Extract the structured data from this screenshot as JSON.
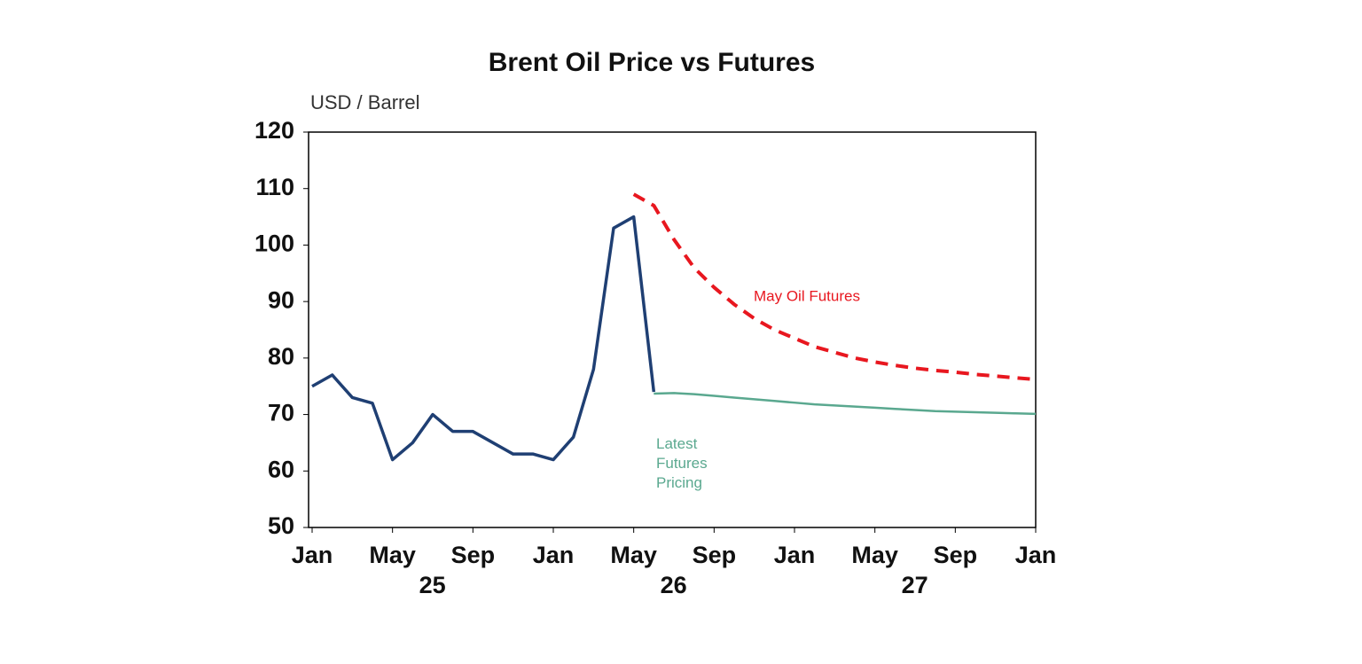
{
  "chart_data": {
    "type": "line",
    "title": "Brent Oil Price vs Futures",
    "y_label": "USD / Barrel",
    "x": [
      "2025-01",
      "2025-02",
      "2025-03",
      "2025-04",
      "2025-05",
      "2025-06",
      "2025-07",
      "2025-08",
      "2025-09",
      "2025-10",
      "2025-11",
      "2025-12",
      "2026-01",
      "2026-02",
      "2026-03",
      "2026-04",
      "2026-05",
      "2026-06",
      "2026-07",
      "2026-08",
      "2026-09",
      "2026-10",
      "2026-11",
      "2026-12",
      "2027-01",
      "2027-02",
      "2027-03",
      "2027-04",
      "2027-05",
      "2027-06",
      "2027-07",
      "2027-08",
      "2027-09",
      "2027-10",
      "2027-11",
      "2027-12",
      "2028-01"
    ],
    "series": [
      {
        "color": "#1f3f73",
        "style": "solid",
        "values": [
          75,
          77,
          73,
          72,
          62,
          65,
          70,
          67,
          67,
          65,
          63,
          63,
          62,
          66,
          78,
          103,
          105,
          74,
          null,
          null,
          null,
          null,
          null,
          null,
          null,
          null,
          null,
          null,
          null,
          null,
          null,
          null,
          null,
          null,
          null,
          null,
          null
        ]
      },
      {
        "name": "May Oil Futures",
        "color": "#e8171f",
        "style": "dashed",
        "values": [
          null,
          null,
          null,
          null,
          null,
          null,
          null,
          null,
          null,
          null,
          null,
          null,
          null,
          null,
          null,
          null,
          109,
          107,
          101,
          96,
          92.5,
          89.5,
          87,
          85,
          83.5,
          82,
          81,
          80,
          79.3,
          78.7,
          78.2,
          77.8,
          77.5,
          77.1,
          76.8,
          76.5,
          76.2
        ]
      },
      {
        "name": "Latest Futures Pricing",
        "color": "#5aa88f",
        "style": "solid",
        "values": [
          null,
          null,
          null,
          null,
          null,
          null,
          null,
          null,
          null,
          null,
          null,
          null,
          null,
          null,
          null,
          null,
          null,
          73.7,
          73.8,
          73.6,
          73.3,
          73.0,
          72.7,
          72.4,
          72.1,
          71.8,
          71.6,
          71.4,
          71.2,
          71.0,
          70.8,
          70.6,
          70.5,
          70.4,
          70.3,
          70.2,
          70.1
        ]
      }
    ],
    "xlim": [
      "2025-01",
      "2028-01"
    ],
    "xticks": [
      {
        "value": "2025-01",
        "label": "Jan"
      },
      {
        "value": "2025-05",
        "label": "May"
      },
      {
        "value": "2025-09",
        "label": "Sep"
      },
      {
        "value": "2026-01",
        "label": "Jan"
      },
      {
        "value": "2026-05",
        "label": "May"
      },
      {
        "value": "2026-09",
        "label": "Sep"
      },
      {
        "value": "2027-01",
        "label": "Jan"
      },
      {
        "value": "2027-05",
        "label": "May"
      },
      {
        "value": "2027-09",
        "label": "Sep"
      },
      {
        "value": "2028-01",
        "label": "Jan"
      }
    ],
    "year_labels": [
      {
        "value": "2025",
        "label": "25"
      },
      {
        "value": "2026",
        "label": "26"
      },
      {
        "value": "2027",
        "label": "27"
      }
    ],
    "ylim": [
      50,
      120
    ],
    "yticks": [
      50,
      60,
      70,
      80,
      90,
      100,
      110,
      120
    ],
    "grid": false
  }
}
